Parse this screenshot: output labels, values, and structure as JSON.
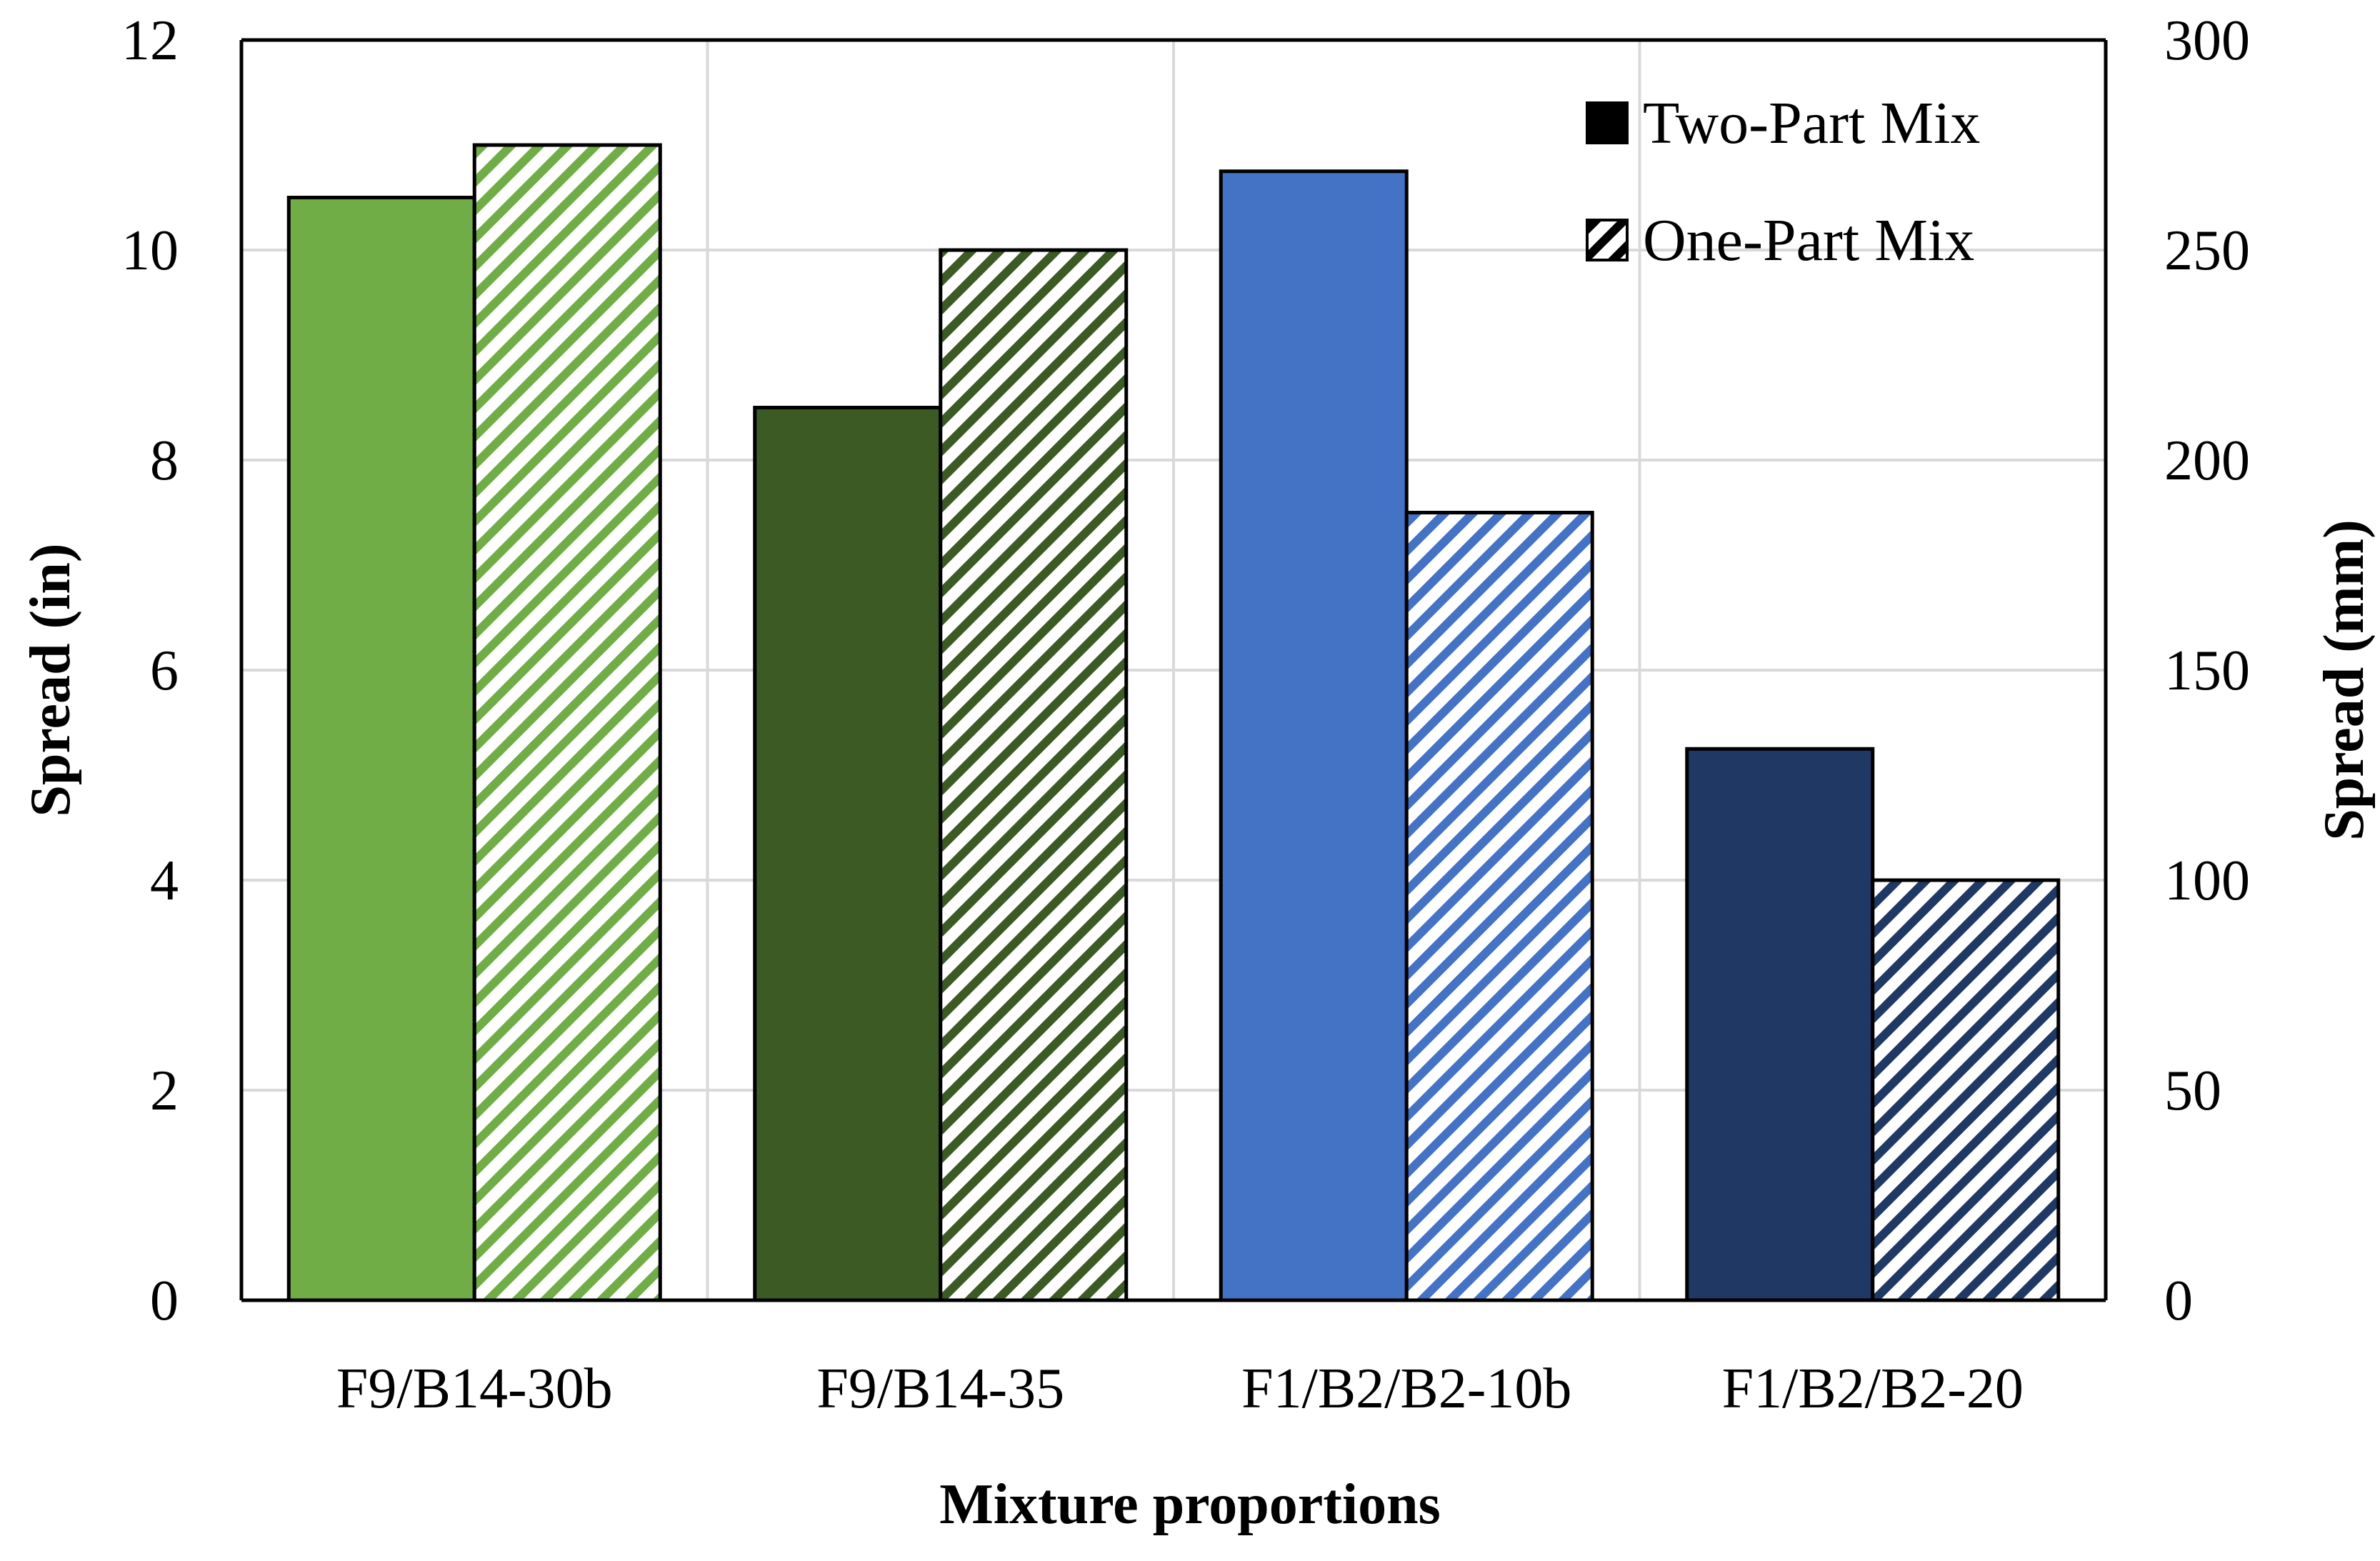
{
  "chart_data": {
    "type": "bar",
    "xlabel": "Mixture proportions",
    "ylabel": "Spread (in)",
    "y2label": "Spread (mm)",
    "categories": [
      "F9/B14-30b",
      "F9/B14-35",
      "F1/B2/B2-10b",
      "F1/B2/B2-20"
    ],
    "series": [
      {
        "name": "Two-Part Mix",
        "values": [
          10.5,
          8.5,
          10.75,
          5.25
        ],
        "pattern": "solid"
      },
      {
        "name": "One-Part Mix",
        "values": [
          11.0,
          10.0,
          7.5,
          4.0
        ],
        "pattern": "diagonal-hatch"
      }
    ],
    "category_colors": [
      "#70ad47",
      "#3b5a24",
      "#4472c4",
      "#203864"
    ],
    "ylim": [
      0,
      12
    ],
    "yticks": [
      0,
      2,
      4,
      6,
      8,
      10,
      12
    ],
    "ytick_labels": [
      "0",
      "2",
      "4",
      "6",
      "8",
      "10",
      "12"
    ],
    "y2lim": [
      0,
      300
    ],
    "y2ticks": [
      0,
      50,
      100,
      150,
      200,
      250,
      300
    ],
    "y2tick_labels": [
      "0",
      "50",
      "100",
      "150",
      "200",
      "250",
      "300"
    ],
    "grid": true,
    "legend_position": "top-right"
  }
}
